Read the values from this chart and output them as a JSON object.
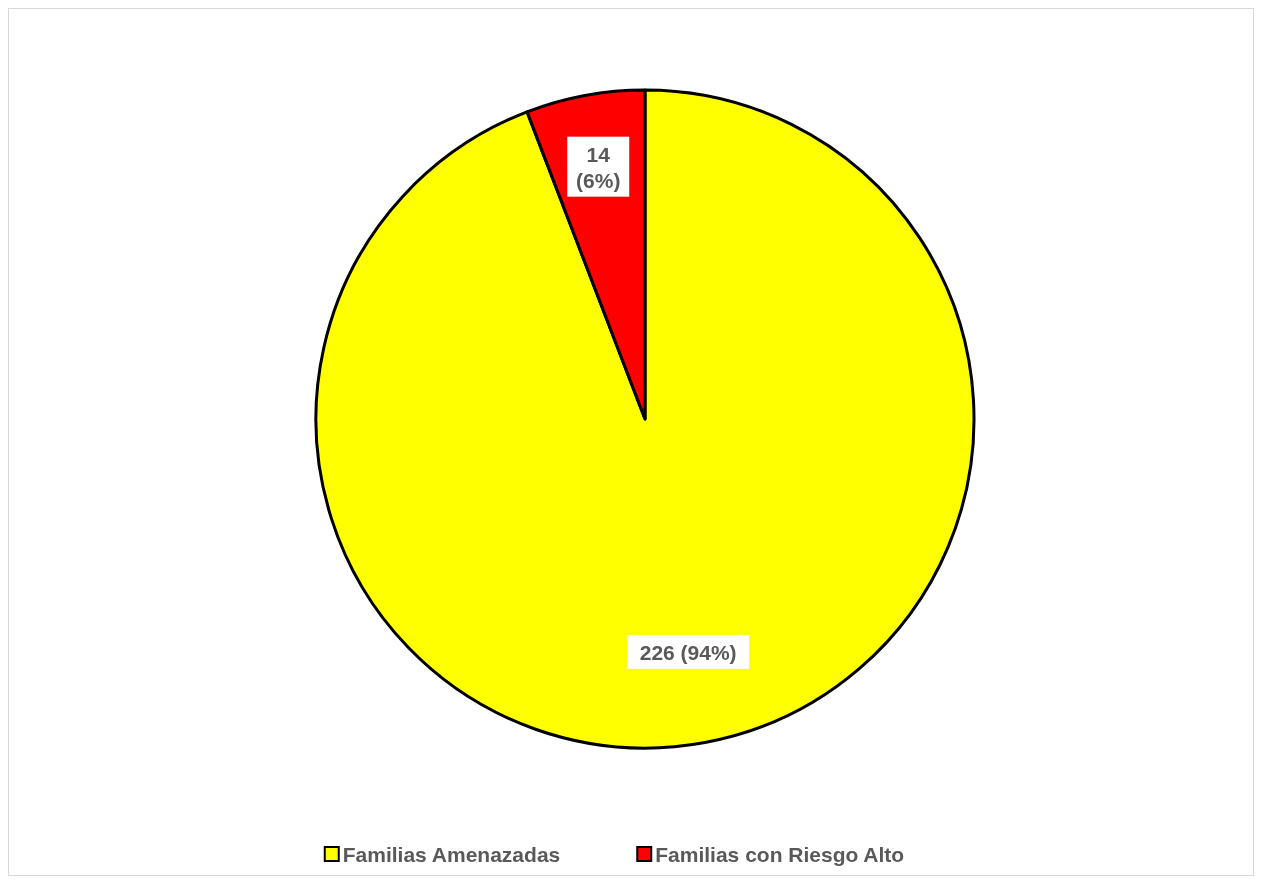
{
  "chart_data": {
    "type": "pie",
    "categories": [
      "Familias Amenazadas",
      "Familias con Riesgo Alto"
    ],
    "values": [
      226,
      14
    ],
    "colors": [
      "#ffff00",
      "#ff0000"
    ],
    "value_labels": [
      "226 (94%)",
      "14 (6%)"
    ],
    "legend": "bottom"
  }
}
